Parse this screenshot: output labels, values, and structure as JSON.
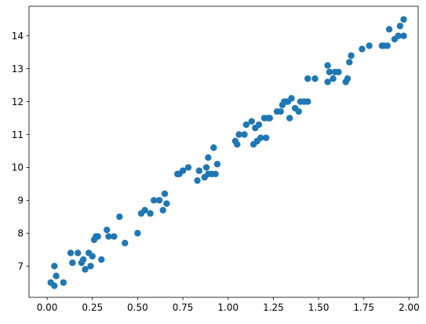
{
  "chart_data": {
    "type": "scatter",
    "title": "",
    "xlabel": "",
    "ylabel": "",
    "grid": false,
    "legend": "none",
    "xlim": [
      -0.1,
      2.05
    ],
    "ylim": [
      6.05,
      14.9
    ],
    "x_ticks": [
      0.0,
      0.25,
      0.5,
      0.75,
      1.0,
      1.25,
      1.5,
      1.75,
      2.0
    ],
    "x_tick_labels": [
      "0.00",
      "0.25",
      "0.50",
      "0.75",
      "1.00",
      "1.25",
      "1.50",
      "1.75",
      "2.00"
    ],
    "y_ticks": [
      7,
      8,
      9,
      10,
      11,
      12,
      13,
      14
    ],
    "y_tick_labels": [
      "7",
      "8",
      "9",
      "10",
      "11",
      "12",
      "13",
      "14"
    ],
    "series": [
      {
        "color": "#1f77b4",
        "x": [
          0.02,
          0.04,
          0.05,
          0.04,
          0.09,
          0.13,
          0.14,
          0.17,
          0.19,
          0.2,
          0.21,
          0.23,
          0.24,
          0.25,
          0.26,
          0.27,
          0.28,
          0.3,
          0.33,
          0.34,
          0.37,
          0.4,
          0.43,
          0.5,
          0.52,
          0.54,
          0.57,
          0.59,
          0.62,
          0.64,
          0.65,
          0.66,
          0.72,
          0.73,
          0.75,
          0.78,
          0.83,
          0.84,
          0.87,
          0.88,
          0.89,
          0.89,
          0.91,
          0.92,
          0.93,
          0.94,
          1.04,
          1.05,
          1.06,
          1.09,
          1.1,
          1.13,
          1.14,
          1.15,
          1.16,
          1.17,
          1.18,
          1.2,
          1.21,
          1.22,
          1.23,
          1.27,
          1.29,
          1.3,
          1.31,
          1.32,
          1.33,
          1.34,
          1.35,
          1.37,
          1.39,
          1.4,
          1.42,
          1.44,
          1.44,
          1.48,
          1.55,
          1.55,
          1.56,
          1.58,
          1.59,
          1.61,
          1.65,
          1.66,
          1.67,
          1.68,
          1.74,
          1.78,
          1.85,
          1.86,
          1.88,
          1.89,
          1.92,
          1.94,
          1.95,
          1.97,
          1.97
        ],
        "y": [
          6.5,
          6.4,
          6.7,
          7.0,
          6.5,
          7.4,
          7.1,
          7.4,
          7.1,
          7.2,
          6.9,
          7.4,
          7.0,
          7.3,
          7.8,
          7.9,
          7.9,
          7.2,
          8.1,
          7.9,
          7.9,
          8.5,
          7.7,
          8.0,
          8.6,
          8.7,
          8.6,
          9.0,
          9.0,
          8.7,
          9.2,
          8.9,
          9.8,
          9.8,
          9.9,
          10.0,
          9.6,
          9.9,
          9.7,
          10.0,
          10.3,
          9.8,
          9.8,
          10.6,
          9.8,
          10.1,
          10.8,
          10.7,
          11.0,
          11.0,
          11.3,
          11.4,
          10.7,
          11.2,
          10.8,
          11.3,
          10.9,
          11.5,
          10.9,
          11.5,
          11.5,
          11.7,
          11.7,
          11.9,
          12.0,
          12.0,
          12.0,
          11.5,
          12.1,
          11.8,
          11.7,
          12.0,
          12.0,
          12.0,
          12.7,
          12.7,
          12.6,
          13.1,
          12.9,
          12.7,
          12.9,
          12.9,
          12.6,
          12.7,
          13.2,
          13.4,
          13.6,
          13.7,
          13.7,
          13.7,
          13.7,
          14.2,
          13.9,
          14.0,
          14.3,
          14.5,
          14.0
        ]
      }
    ]
  }
}
